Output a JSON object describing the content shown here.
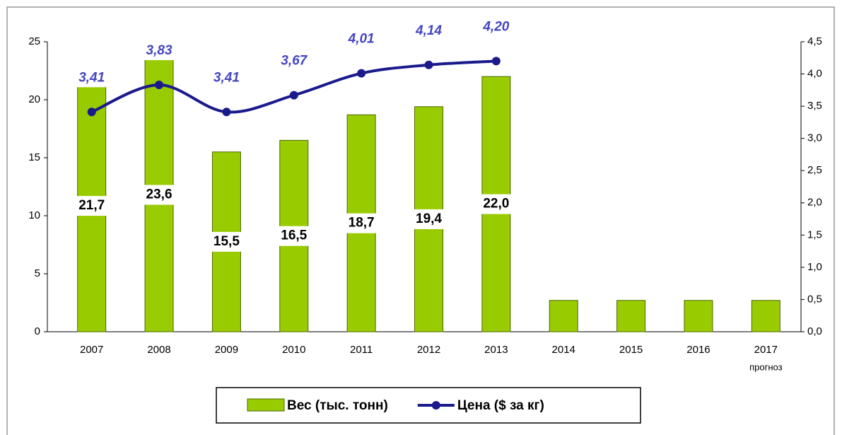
{
  "chart_data": {
    "type": "bar_line",
    "categories": [
      "2007",
      "2008",
      "2009",
      "2010",
      "2011",
      "2012",
      "2013",
      "2014",
      "2015",
      "2016",
      "2017"
    ],
    "x_annotation": "прогноз",
    "series": [
      {
        "name": "Вес (тыс. тонн)",
        "type": "bar",
        "color": "#99cc00",
        "values": [
          21.7,
          23.6,
          15.5,
          16.5,
          18.7,
          19.4,
          22.0,
          2.7,
          2.7,
          2.7,
          2.7
        ],
        "value_labels": [
          "21,7",
          "23,6",
          "15,5",
          "16,5",
          "18,7",
          "19,4",
          "22,0",
          null,
          null,
          null,
          null
        ]
      },
      {
        "name": "Цена ($ за кг)",
        "type": "line",
        "axis": "y2",
        "color": "#1a1a8c",
        "values": [
          3.41,
          3.83,
          3.41,
          3.67,
          4.01,
          4.14,
          4.2,
          null,
          null,
          null,
          null
        ],
        "value_labels": [
          "3,41",
          "3,83",
          "3,41",
          "3,67",
          "4,01",
          "4,14",
          "4,20",
          null,
          null,
          null,
          null
        ]
      }
    ],
    "ylim": [
      0,
      25
    ],
    "yticks": [
      0,
      5,
      10,
      15,
      20,
      25
    ],
    "y2lim": [
      0,
      4.5
    ],
    "y2ticks": [
      {
        "value": 0,
        "label": "0,0"
      },
      {
        "value": 0.5,
        "label": "0,5"
      },
      {
        "value": 1,
        "label": "1,0"
      },
      {
        "value": 1.5,
        "label": "1,5"
      },
      {
        "value": 2,
        "label": "2,0"
      },
      {
        "value": 2.5,
        "label": "2,5"
      },
      {
        "value": 3,
        "label": "3,0"
      },
      {
        "value": 3.5,
        "label": "3,5"
      },
      {
        "value": 4,
        "label": "4,0"
      },
      {
        "value": 4.5,
        "label": "4,5"
      }
    ],
    "grid": false,
    "legend": "bottom"
  }
}
